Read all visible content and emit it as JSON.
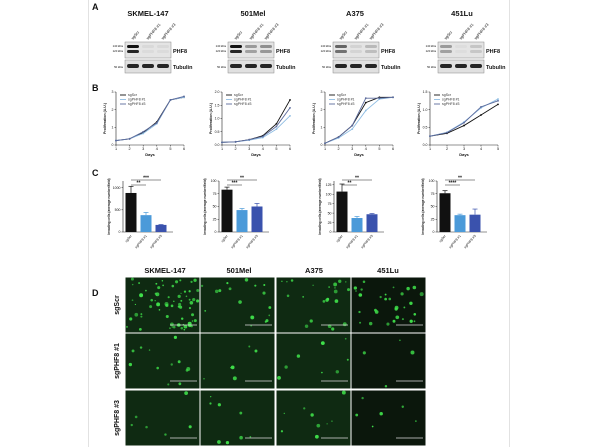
{
  "panel_labels": [
    "A",
    "B",
    "C",
    "D"
  ],
  "cell_lines": [
    "SKMEL-147",
    "501Mel",
    "A375",
    "451Lu"
  ],
  "conditions": [
    "sgScr",
    "sgPHF8 #1",
    "sgPHF8 #3"
  ],
  "blot": {
    "targets": [
      "PHF8",
      "Tubulin"
    ],
    "markers_phf8": [
      "140 kDa",
      "120 kDa"
    ],
    "marker_tubulin": "50 kDa"
  },
  "colors": {
    "sgScr": "#111111",
    "sgPHF8_1": "#4b9ad9",
    "sgPHF8_3": "#3a52ad",
    "line_1": "#8fbde3",
    "line_3": "#5b6a9c",
    "micrograph_bg": "#0f2a12",
    "cell": "#3fe04a"
  },
  "chart_data": [
    {
      "type": "line",
      "title": "SKMEL-147",
      "xlabel": "Days",
      "ylabel": "Proliferation (A.U.)",
      "xlim": [
        1,
        6
      ],
      "ylim": [
        0,
        3
      ],
      "yticks": [
        "0",
        "1",
        "2",
        "3"
      ],
      "xticks": [
        "1",
        "2",
        "3",
        "4",
        "5",
        "6"
      ],
      "legend": "top-left",
      "x": [
        1,
        2,
        3,
        4,
        5,
        6
      ],
      "series": [
        {
          "name": "sgScr",
          "values": [
            0.25,
            0.35,
            0.7,
            1.3,
            2.55,
            2.7
          ]
        },
        {
          "name": "sgPHF8 #1",
          "values": [
            0.25,
            0.35,
            0.65,
            1.2,
            2.55,
            2.7
          ]
        },
        {
          "name": "sgPHF8 #3",
          "values": [
            0.25,
            0.35,
            0.75,
            1.25,
            2.55,
            2.75
          ]
        }
      ]
    },
    {
      "type": "line",
      "title": "501Mel",
      "xlabel": "Days",
      "ylabel": "Proliferation (A.U.)",
      "xlim": [
        1,
        6
      ],
      "ylim": [
        0,
        2
      ],
      "yticks": [
        "0.0",
        "0.5",
        "1.0",
        "1.5",
        "2.0"
      ],
      "xticks": [
        "1",
        "2",
        "3",
        "4",
        "5",
        "6"
      ],
      "legend": "top-left",
      "x": [
        1,
        2,
        3,
        4,
        5,
        6
      ],
      "series": [
        {
          "name": "sgScr",
          "values": [
            0.1,
            0.12,
            0.2,
            0.35,
            0.8,
            1.7
          ]
        },
        {
          "name": "sgPHF8 #1",
          "values": [
            0.1,
            0.12,
            0.18,
            0.28,
            0.6,
            1.1
          ]
        },
        {
          "name": "sgPHF8 #3",
          "values": [
            0.1,
            0.12,
            0.2,
            0.32,
            0.7,
            1.4
          ]
        }
      ]
    },
    {
      "type": "line",
      "title": "A375",
      "xlabel": "Days",
      "ylabel": "Proliferation (A.U.)",
      "xlim": [
        1,
        6
      ],
      "ylim": [
        0,
        3
      ],
      "yticks": [
        "0",
        "1",
        "2",
        "3"
      ],
      "xticks": [
        "1",
        "2",
        "3",
        "4",
        "5",
        "6"
      ],
      "legend": "top-left",
      "x": [
        1,
        2,
        3,
        4,
        5,
        6
      ],
      "series": [
        {
          "name": "sgScr",
          "values": [
            0.1,
            0.45,
            1.1,
            2.4,
            2.7,
            2.7
          ]
        },
        {
          "name": "sgPHF8 #1",
          "values": [
            0.1,
            0.4,
            0.9,
            1.95,
            2.6,
            2.7
          ]
        },
        {
          "name": "sgPHF8 #3",
          "values": [
            0.1,
            0.45,
            1.1,
            2.65,
            2.65,
            2.7
          ]
        }
      ]
    },
    {
      "type": "line",
      "title": "451Lu",
      "xlabel": "Days",
      "ylabel": "Proliferation (A.U.)",
      "xlim": [
        1,
        5
      ],
      "ylim": [
        0,
        1.5
      ],
      "yticks": [
        "0.0",
        "0.5",
        "1.0",
        "1.5"
      ],
      "xticks": [
        "1",
        "2",
        "3",
        "4",
        "5"
      ],
      "legend": "top-left",
      "x": [
        1,
        2,
        3,
        4,
        5
      ],
      "series": [
        {
          "name": "sgScr",
          "values": [
            0.25,
            0.33,
            0.55,
            0.85,
            1.15
          ]
        },
        {
          "name": "sgPHF8 #1",
          "values": [
            0.25,
            0.36,
            0.65,
            1.05,
            1.3
          ]
        },
        {
          "name": "sgPHF8 #3",
          "values": [
            0.25,
            0.35,
            0.63,
            1.08,
            1.25
          ]
        }
      ]
    },
    {
      "type": "bar",
      "title": "SKMEL-147",
      "ylabel": "Invading cells (average number/field)",
      "categories": [
        "sgScr",
        "sgPHF8 #1",
        "sgPHF8 #3"
      ],
      "values": [
        880,
        380,
        160
      ],
      "errors": [
        150,
        60,
        10
      ],
      "ylim": [
        0,
        1150
      ],
      "yticks": [
        0,
        500,
        1000
      ],
      "yticklabels": [
        "0",
        "500",
        "1000"
      ],
      "significance": [
        {
          "pair": [
            0,
            1
          ],
          "label": "**"
        },
        {
          "pair": [
            0,
            2
          ],
          "label": "***"
        }
      ]
    },
    {
      "type": "bar",
      "title": "501Mel",
      "ylabel": "Invading cells (average number/field)",
      "categories": [
        "sgScr",
        "sgPHF8 #1",
        "sgPHF8 #3"
      ],
      "values": [
        83,
        43,
        50
      ],
      "errors": [
        5,
        3,
        6
      ],
      "ylim": [
        0,
        100
      ],
      "yticks": [
        0,
        25,
        50,
        75,
        100
      ],
      "yticklabels": [
        "0",
        "25",
        "50",
        "75",
        "100"
      ],
      "significance": [
        {
          "pair": [
            0,
            1
          ],
          "label": "***"
        },
        {
          "pair": [
            0,
            2
          ],
          "label": "**"
        }
      ]
    },
    {
      "type": "bar",
      "title": "A375",
      "ylabel": "Invading cells (average number/field)",
      "categories": [
        "sgScr",
        "sgPHF8 #1",
        "sgPHF8 #3"
      ],
      "values": [
        107,
        37,
        47
      ],
      "errors": [
        20,
        4,
        2
      ],
      "ylim": [
        0,
        135
      ],
      "yticks": [
        0,
        25,
        50,
        75,
        100,
        125
      ],
      "yticklabels": [
        "0",
        "25",
        "50",
        "75",
        "100",
        "125"
      ],
      "significance": [
        {
          "pair": [
            0,
            1
          ],
          "label": "**"
        },
        {
          "pair": [
            0,
            2
          ],
          "label": "**"
        }
      ]
    },
    {
      "type": "bar",
      "title": "451Lu",
      "ylabel": "Invading cells (average number/field)",
      "categories": [
        "sgScr",
        "sgPHF8 #1",
        "sgPHF8 #3"
      ],
      "values": [
        76,
        33,
        34
      ],
      "errors": [
        5,
        2,
        11
      ],
      "ylim": [
        0,
        100
      ],
      "yticks": [
        0,
        25,
        50,
        75,
        100
      ],
      "yticklabels": [
        "0",
        "25",
        "50",
        "75",
        "100"
      ],
      "significance": [
        {
          "pair": [
            0,
            1
          ],
          "label": "****"
        },
        {
          "pair": [
            0,
            2
          ],
          "label": "**"
        }
      ]
    }
  ]
}
